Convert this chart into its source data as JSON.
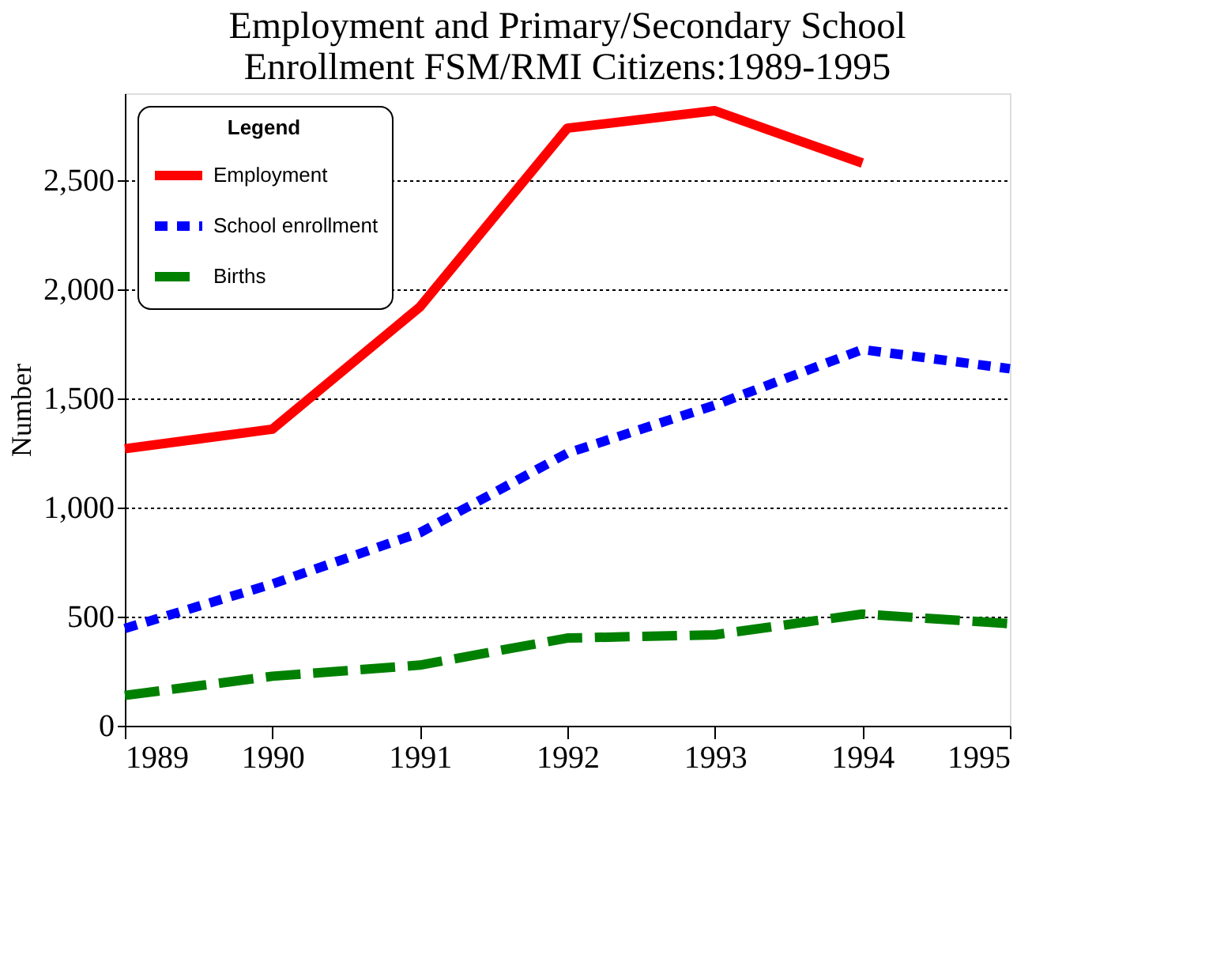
{
  "chart_data": {
    "type": "line",
    "title": [
      "Employment and Primary/Secondary School",
      "Enrollment FSM/RMI Citizens:1989-1995"
    ],
    "ylabel": "Number",
    "legend_title": "Legend",
    "legend": "top left",
    "grid": "y",
    "marker": "none",
    "x": [
      1989,
      1990,
      1991,
      1992,
      1993,
      1994,
      1995
    ],
    "xlim": [
      1989,
      1995
    ],
    "xticks": [
      1989,
      1990,
      1991,
      1992,
      1993,
      1994,
      1995
    ],
    "ylim": [
      0,
      2900
    ],
    "yticks": [
      0,
      500,
      {
        "value": 1000,
        "label": "1,000"
      },
      {
        "value": 1500,
        "label": "1,500"
      },
      {
        "value": 2000,
        "label": "2,000"
      },
      {
        "value": 2500,
        "label": "2,500"
      }
    ],
    "series": [
      {
        "name": "Employment",
        "color": "#ff0000",
        "line_style": "solid",
        "values": [
          1270,
          1360,
          1920,
          2740,
          2820,
          2580,
          null
        ]
      },
      {
        "name": "School enrollment",
        "color": "#0000ff",
        "line_style": "dotted",
        "values": [
          446,
          650,
          885,
          1250,
          1470,
          1725,
          1637
        ]
      },
      {
        "name": "Births",
        "color": "#008000",
        "line_style": "dashed",
        "values": [
          139,
          227,
          278,
          402,
          417,
          512,
          468
        ]
      }
    ]
  }
}
